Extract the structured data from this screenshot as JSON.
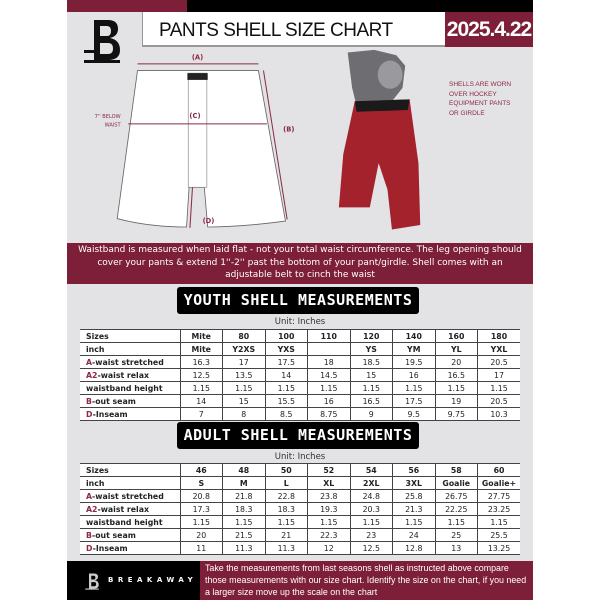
{
  "header": {
    "title": "PANTS SHELL SIZE CHART",
    "date": "2025.4.22"
  },
  "diagram": {
    "label_a": "(A)",
    "label_b": "(B)",
    "label_c": "(C)",
    "label_d": "(D)",
    "below_waist_1": "7'' BELOW",
    "below_waist_2": "WAIST"
  },
  "note": {
    "line1": "SHELLS ARE WORN",
    "line2": "OVER HOCKEY",
    "line3": "EQUIPMENT PANTS",
    "line4": "OR GIRDLE"
  },
  "banner": {
    "text": "Waistband is measured when laid flat - not your total waist circumference. The leg opening should cover your pants & extend 1''-2'' past the bottom of your pant/girdle. Shell comes with an adjustable belt to cinch the waist"
  },
  "youth": {
    "title": "YOUTH SHELL MEASUREMENTS",
    "unit": "Unit: Inches",
    "rows": [
      {
        "prefix": "",
        "label": "Sizes",
        "values": [
          "Mite",
          "80",
          "100",
          "110",
          "120",
          "140",
          "160",
          "180"
        ]
      },
      {
        "prefix": "",
        "label": "inch",
        "values": [
          "Mite",
          "Y2XS",
          "YXS",
          "",
          "YS",
          "YM",
          "YL",
          "YXL"
        ]
      },
      {
        "prefix": "A",
        "label": "-waist stretched",
        "values": [
          "16.3",
          "17",
          "17.5",
          "18",
          "18.5",
          "19.5",
          "20",
          "20.5"
        ]
      },
      {
        "prefix": "A2",
        "label": "-waist relax",
        "values": [
          "12.5",
          "13.5",
          "14",
          "14.5",
          "15",
          "16",
          "16.5",
          "17"
        ]
      },
      {
        "prefix": "",
        "label": "waistband height",
        "values": [
          "1.15",
          "1.15",
          "1.15",
          "1.15",
          "1.15",
          "1.15",
          "1.15",
          "1.15"
        ]
      },
      {
        "prefix": "B",
        "label": "-out seam",
        "values": [
          "14",
          "15",
          "15.5",
          "16",
          "16.5",
          "17.5",
          "19",
          "20.5"
        ]
      },
      {
        "prefix": "D",
        "label": "-Inseam",
        "values": [
          "7",
          "8",
          "8.5",
          "8.75",
          "9",
          "9.5",
          "9.75",
          "10.3"
        ]
      }
    ]
  },
  "adult": {
    "title": "ADULT SHELL MEASUREMENTS",
    "unit": "Unit: Inches",
    "rows": [
      {
        "prefix": "",
        "label": "Sizes",
        "values": [
          "46",
          "48",
          "50",
          "52",
          "54",
          "56",
          "58",
          "60"
        ]
      },
      {
        "prefix": "",
        "label": "inch",
        "values": [
          "S",
          "M",
          "L",
          "XL",
          "2XL",
          "3XL",
          "Goalie",
          "Goalie+"
        ]
      },
      {
        "prefix": "A",
        "label": "-waist stretched",
        "values": [
          "20.8",
          "21.8",
          "22.8",
          "23.8",
          "24.8",
          "25.8",
          "26.75",
          "27.75"
        ]
      },
      {
        "prefix": "A2",
        "label": "-waist relax",
        "values": [
          "17.3",
          "18.3",
          "18.3",
          "19.3",
          "20.3",
          "21.3",
          "22.25",
          "23.25"
        ]
      },
      {
        "prefix": "",
        "label": "waistband height",
        "values": [
          "1.15",
          "1.15",
          "1.15",
          "1.15",
          "1.15",
          "1.15",
          "1.15",
          "1.15"
        ]
      },
      {
        "prefix": "B",
        "label": "-out seam",
        "values": [
          "20",
          "21.5",
          "21",
          "22.3",
          "23",
          "24",
          "25",
          "25.5"
        ]
      },
      {
        "prefix": "D",
        "label": "-Inseam",
        "values": [
          "11",
          "11.3",
          "11.3",
          "12",
          "12.5",
          "12.8",
          "13",
          "13.25"
        ]
      }
    ]
  },
  "footer": {
    "brand": "BREAKAWAY",
    "text": "Take the measurements from last seasons shell as instructed above compare those measurements  with our size chart. Identify the size on the chart, if you need a larger size move up the scale on the chart"
  },
  "colors": {
    "maroon": "#7d1f38",
    "black": "#000000",
    "panel": "#e3e3e6",
    "shell_red": "#a3222b"
  }
}
